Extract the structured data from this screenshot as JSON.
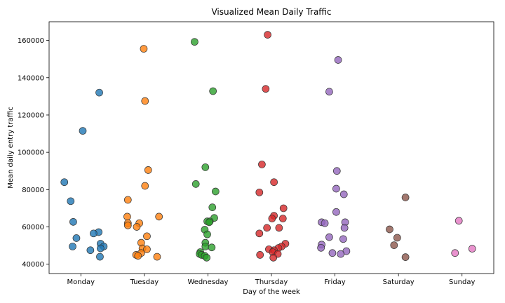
{
  "chart_data": {
    "type": "scatter",
    "title": "Visualized Mean Daily Traffic",
    "xlabel": "Day of the week",
    "ylabel": "Mean daily entry traffic",
    "categories": [
      "Monday",
      "Tuesday",
      "Wednesday",
      "Thursday",
      "Friday",
      "Saturday",
      "Sunday"
    ],
    "ylim": [
      35000,
      170000
    ],
    "yticks": [
      40000,
      60000,
      80000,
      100000,
      120000,
      140000,
      160000
    ],
    "grid": false,
    "legend": "none",
    "jitter": "horizontal",
    "series": [
      {
        "category": "Monday",
        "color": "#1f77b4",
        "points": [
          {
            "x": 0.29,
            "y": 132000
          },
          {
            "x": 0.03,
            "y": 111500
          },
          {
            "x": -0.26,
            "y": 84000
          },
          {
            "x": -0.16,
            "y": 73800
          },
          {
            "x": -0.12,
            "y": 62700
          },
          {
            "x": 0.28,
            "y": 57200
          },
          {
            "x": 0.2,
            "y": 56500
          },
          {
            "x": -0.07,
            "y": 54000
          },
          {
            "x": 0.31,
            "y": 51000
          },
          {
            "x": -0.13,
            "y": 49500
          },
          {
            "x": 0.36,
            "y": 49500
          },
          {
            "x": 0.31,
            "y": 48500
          },
          {
            "x": 0.15,
            "y": 47500
          },
          {
            "x": 0.3,
            "y": 44000
          }
        ]
      },
      {
        "category": "Tuesday",
        "color": "#ff7f0e",
        "points": [
          {
            "x": -0.01,
            "y": 155500
          },
          {
            "x": 0.01,
            "y": 127500
          },
          {
            "x": 0.06,
            "y": 90500
          },
          {
            "x": 0.01,
            "y": 82000
          },
          {
            "x": -0.26,
            "y": 74500
          },
          {
            "x": -0.27,
            "y": 65500
          },
          {
            "x": 0.23,
            "y": 65500
          },
          {
            "x": -0.26,
            "y": 62000
          },
          {
            "x": -0.08,
            "y": 62000
          },
          {
            "x": -0.26,
            "y": 60800
          },
          {
            "x": -0.12,
            "y": 60000
          },
          {
            "x": 0.04,
            "y": 55000
          },
          {
            "x": -0.05,
            "y": 51500
          },
          {
            "x": -0.03,
            "y": 48500
          },
          {
            "x": 0.04,
            "y": 48000
          },
          {
            "x": -0.05,
            "y": 46000
          },
          {
            "x": -0.13,
            "y": 45000
          },
          {
            "x": -0.1,
            "y": 44500
          },
          {
            "x": 0.2,
            "y": 44000
          }
        ]
      },
      {
        "category": "Wednesday",
        "color": "#2ca02c",
        "points": [
          {
            "x": -0.21,
            "y": 159200
          },
          {
            "x": 0.08,
            "y": 132800
          },
          {
            "x": -0.04,
            "y": 92000
          },
          {
            "x": -0.19,
            "y": 83000
          },
          {
            "x": 0.12,
            "y": 79000
          },
          {
            "x": 0.07,
            "y": 70500
          },
          {
            "x": 0.1,
            "y": 64800
          },
          {
            "x": -0.01,
            "y": 63000
          },
          {
            "x": 0.03,
            "y": 63000
          },
          {
            "x": 0.02,
            "y": 62500
          },
          {
            "x": -0.05,
            "y": 58500
          },
          {
            "x": -0.01,
            "y": 56000
          },
          {
            "x": -0.04,
            "y": 51500
          },
          {
            "x": -0.04,
            "y": 49500
          },
          {
            "x": 0.06,
            "y": 49000
          },
          {
            "x": -0.12,
            "y": 46500
          },
          {
            "x": -0.13,
            "y": 45500
          },
          {
            "x": -0.1,
            "y": 45000
          },
          {
            "x": -0.05,
            "y": 44500
          },
          {
            "x": -0.02,
            "y": 43500
          }
        ]
      },
      {
        "category": "Thursday",
        "color": "#d62728",
        "points": [
          {
            "x": -0.06,
            "y": 163000
          },
          {
            "x": -0.09,
            "y": 134000
          },
          {
            "x": -0.15,
            "y": 93500
          },
          {
            "x": 0.04,
            "y": 84000
          },
          {
            "x": -0.19,
            "y": 78500
          },
          {
            "x": 0.19,
            "y": 70000
          },
          {
            "x": 0.04,
            "y": 66000
          },
          {
            "x": 0.01,
            "y": 64500
          },
          {
            "x": 0.18,
            "y": 64500
          },
          {
            "x": -0.07,
            "y": 59500
          },
          {
            "x": 0.12,
            "y": 59500
          },
          {
            "x": -0.19,
            "y": 56500
          },
          {
            "x": 0.22,
            "y": 51000
          },
          {
            "x": 0.16,
            "y": 49500
          },
          {
            "x": 0.11,
            "y": 48700
          },
          {
            "x": -0.04,
            "y": 48000
          },
          {
            "x": 0.04,
            "y": 47500
          },
          {
            "x": 0.02,
            "y": 46500
          },
          {
            "x": 0.1,
            "y": 45500
          },
          {
            "x": -0.18,
            "y": 45000
          },
          {
            "x": 0.03,
            "y": 43500
          }
        ]
      },
      {
        "category": "Friday",
        "color": "#9467bd",
        "points": [
          {
            "x": 0.05,
            "y": 149500
          },
          {
            "x": -0.09,
            "y": 132500
          },
          {
            "x": 0.03,
            "y": 90000
          },
          {
            "x": 0.02,
            "y": 80500
          },
          {
            "x": 0.14,
            "y": 77500
          },
          {
            "x": 0.02,
            "y": 68000
          },
          {
            "x": -0.21,
            "y": 62500
          },
          {
            "x": 0.16,
            "y": 62500
          },
          {
            "x": -0.16,
            "y": 62000
          },
          {
            "x": 0.15,
            "y": 59500
          },
          {
            "x": -0.09,
            "y": 54500
          },
          {
            "x": 0.13,
            "y": 53500
          },
          {
            "x": -0.21,
            "y": 50500
          },
          {
            "x": -0.22,
            "y": 48800
          },
          {
            "x": 0.18,
            "y": 47000
          },
          {
            "x": -0.04,
            "y": 46000
          },
          {
            "x": 0.09,
            "y": 45500
          }
        ]
      },
      {
        "category": "Saturday",
        "color": "#8c564b",
        "points": [
          {
            "x": 0.11,
            "y": 75800
          },
          {
            "x": -0.14,
            "y": 58700
          },
          {
            "x": -0.02,
            "y": 54200
          },
          {
            "x": -0.07,
            "y": 50200
          },
          {
            "x": 0.11,
            "y": 43800
          }
        ]
      },
      {
        "category": "Sunday",
        "color": "#e377c2",
        "points": [
          {
            "x": -0.05,
            "y": 63300
          },
          {
            "x": 0.16,
            "y": 48300
          },
          {
            "x": -0.11,
            "y": 46000
          }
        ]
      }
    ]
  }
}
